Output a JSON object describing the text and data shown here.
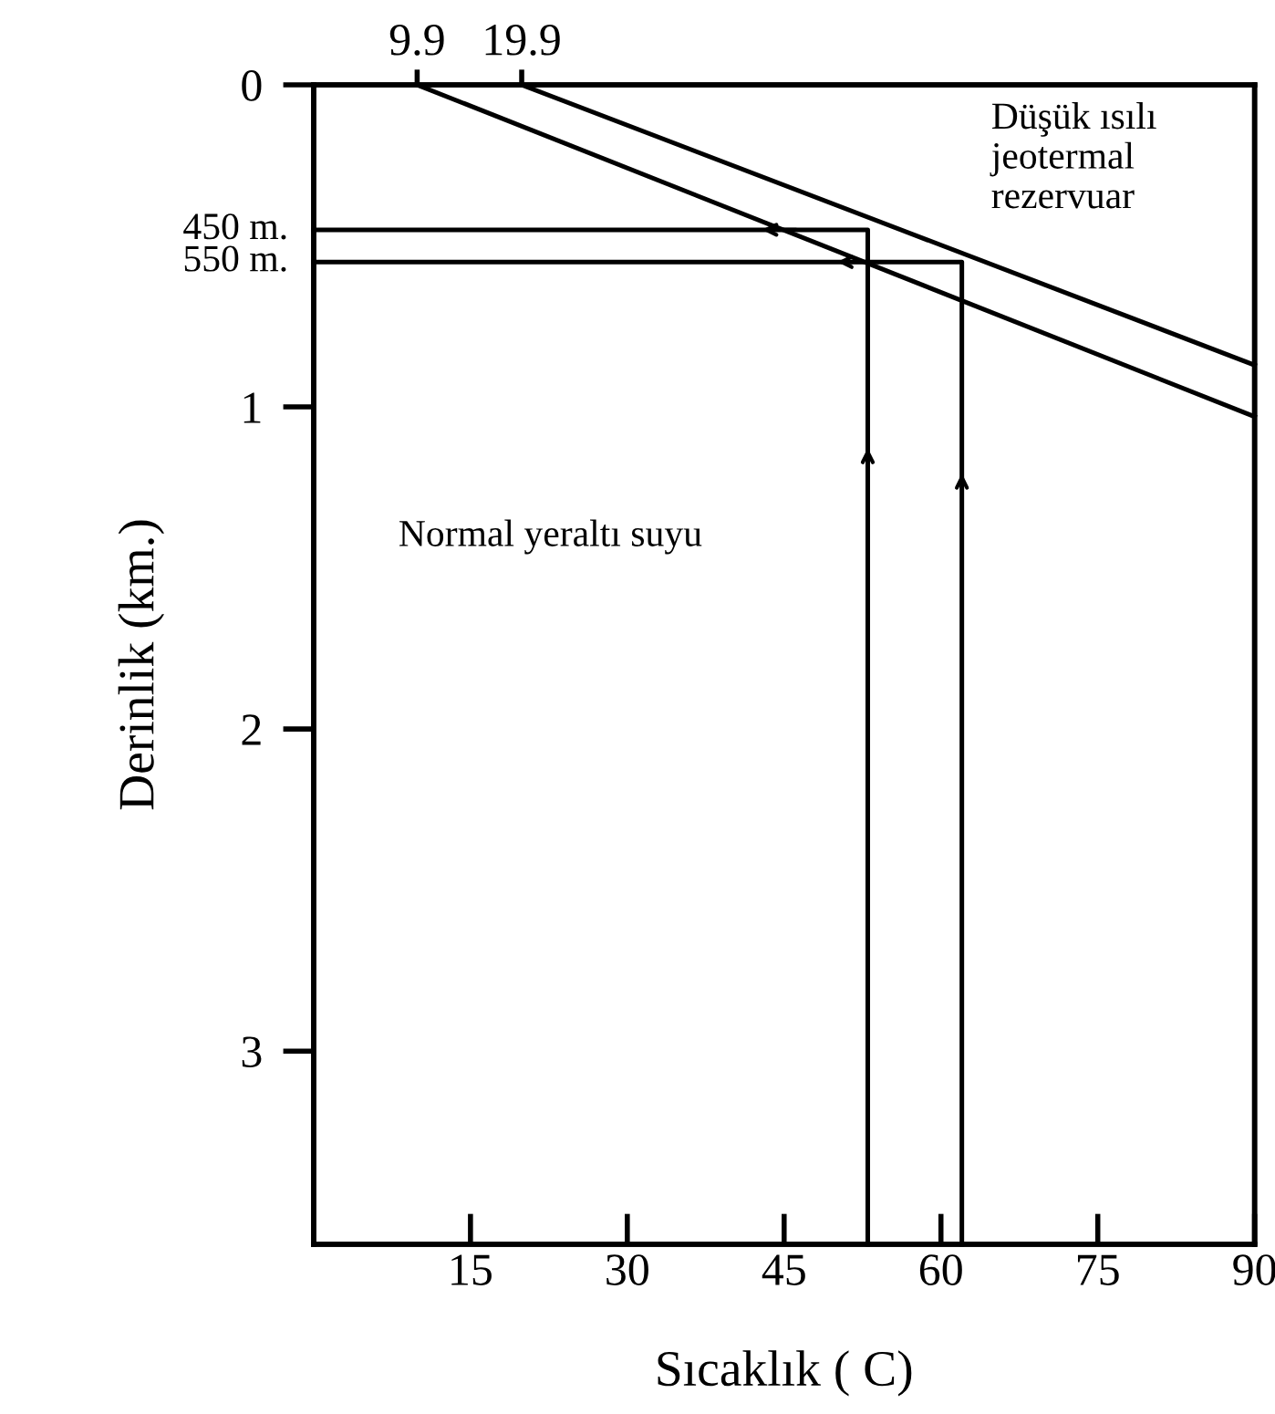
{
  "chart_data": {
    "type": "line",
    "xlabel": "Sıcaklık ( C)",
    "ylabel": "Derinlik (km.)",
    "xlim": [
      0,
      90
    ],
    "xticks": [
      15,
      30,
      45,
      60,
      75,
      90
    ],
    "x2lim": [
      0,
      90
    ],
    "x2ticks": [
      9.9,
      19.9
    ],
    "ylim": [
      3.6,
      0
    ],
    "yticks": [
      0,
      1,
      2,
      3
    ],
    "grid": false,
    "legend": false,
    "marker": "none",
    "line_style": "solid",
    "series": [
      {
        "color": "#000000",
        "x": [
          9.9,
          90
        ],
        "values": [
          0,
          1.03
        ]
      },
      {
        "color": "#000000",
        "x": [
          19.9,
          90
        ],
        "values": [
          0,
          0.87
        ]
      },
      {
        "color": "#000000",
        "x": [
          0,
          53,
          53
        ],
        "values": [
          0.45,
          0.45,
          3.6
        ]
      },
      {
        "color": "#000000",
        "x": [
          0,
          62,
          62
        ],
        "values": [
          0.55,
          0.55,
          3.6
        ]
      }
    ],
    "annotations": [
      {
        "text": "450 m.",
        "x": 0,
        "y": 0.45
      },
      {
        "text": "550 m.",
        "x": 0,
        "y": 0.55
      },
      "Düşük ısılı\njeotermal\nrezervuar",
      "Normal yeraltı suyu"
    ]
  }
}
